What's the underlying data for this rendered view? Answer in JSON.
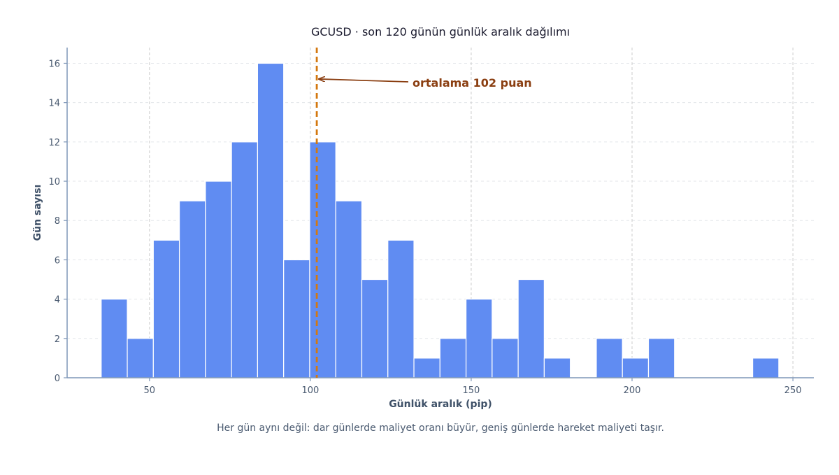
{
  "chart_data": {
    "type": "bar",
    "title": "GCUSD · son 120 günün günlük aralık dağılımı",
    "xlabel": "Günlük aralık (pip)",
    "ylabel": "Gün sayısı",
    "caption": "Her gün aynı değil: dar günlerde maliyet oranı büyür, geniş günlerde hareket maliyeti taşır.",
    "xlim": [
      24.4,
      256.5
    ],
    "ylim": [
      0,
      16.8
    ],
    "x_ticks": [
      50,
      100,
      150,
      200,
      250
    ],
    "y_ticks": [
      0,
      2,
      4,
      6,
      8,
      10,
      12,
      14,
      16
    ],
    "grid": true,
    "bins": [
      {
        "x0": 35.0,
        "x1": 43.1,
        "count": 4
      },
      {
        "x0": 43.1,
        "x1": 51.2,
        "count": 2
      },
      {
        "x0": 51.2,
        "x1": 59.3,
        "count": 7
      },
      {
        "x0": 59.3,
        "x1": 67.4,
        "count": 9
      },
      {
        "x0": 67.4,
        "x1": 75.5,
        "count": 10
      },
      {
        "x0": 75.5,
        "x1": 83.6,
        "count": 12
      },
      {
        "x0": 83.6,
        "x1": 91.7,
        "count": 16
      },
      {
        "x0": 91.7,
        "x1": 99.8,
        "count": 6
      },
      {
        "x0": 99.8,
        "x1": 107.9,
        "count": 12
      },
      {
        "x0": 107.9,
        "x1": 116.0,
        "count": 9
      },
      {
        "x0": 116.0,
        "x1": 124.1,
        "count": 5
      },
      {
        "x0": 124.1,
        "x1": 132.2,
        "count": 7
      },
      {
        "x0": 132.2,
        "x1": 140.3,
        "count": 1
      },
      {
        "x0": 140.3,
        "x1": 148.4,
        "count": 2
      },
      {
        "x0": 148.4,
        "x1": 156.5,
        "count": 4
      },
      {
        "x0": 156.5,
        "x1": 164.6,
        "count": 2
      },
      {
        "x0": 164.6,
        "x1": 172.7,
        "count": 5
      },
      {
        "x0": 172.7,
        "x1": 180.8,
        "count": 1
      },
      {
        "x0": 180.8,
        "x1": 188.9,
        "count": 0
      },
      {
        "x0": 188.9,
        "x1": 197.0,
        "count": 2
      },
      {
        "x0": 197.0,
        "x1": 205.1,
        "count": 1
      },
      {
        "x0": 205.1,
        "x1": 213.2,
        "count": 2
      },
      {
        "x0": 213.2,
        "x1": 221.3,
        "count": 0
      },
      {
        "x0": 221.3,
        "x1": 229.4,
        "count": 0
      },
      {
        "x0": 229.4,
        "x1": 237.5,
        "count": 0
      },
      {
        "x0": 237.5,
        "x1": 245.6,
        "count": 1
      }
    ],
    "mean": {
      "value": 102,
      "label": "ortalama 102 puan"
    },
    "colors": {
      "bar": "#5b88f2",
      "bar_edge": "#ffffff",
      "mean_line": "#d4780f",
      "annotation": "#8b3f12",
      "axis": "#7f97b8",
      "grid_x": "#cccccc",
      "grid_y": "#e3e6ea"
    }
  }
}
